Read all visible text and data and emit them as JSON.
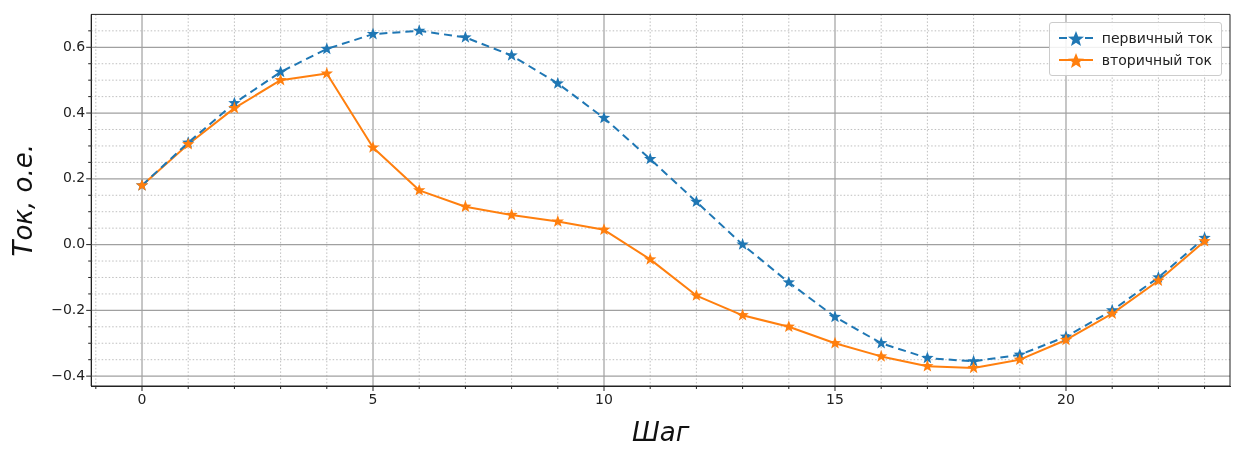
{
  "chart_data": {
    "type": "line",
    "xlabel": "Шаг",
    "ylabel": "Ток, о.е.",
    "x": [
      0,
      1,
      2,
      3,
      4,
      5,
      6,
      7,
      8,
      9,
      10,
      11,
      12,
      13,
      14,
      15,
      16,
      17,
      18,
      19,
      20,
      21,
      22,
      23
    ],
    "series": [
      {
        "name": "первичный ток",
        "color": "#1f77b4",
        "line_style": "dashed",
        "values": [
          0.18,
          0.31,
          0.43,
          0.525,
          0.595,
          0.64,
          0.65,
          0.63,
          0.575,
          0.49,
          0.385,
          0.26,
          0.13,
          0.0,
          -0.115,
          -0.22,
          -0.3,
          -0.345,
          -0.355,
          -0.335,
          -0.28,
          -0.2,
          -0.1,
          0.02
        ]
      },
      {
        "name": "вторичный ток",
        "color": "#ff7f0e",
        "line_style": "solid",
        "values": [
          0.18,
          0.305,
          0.415,
          0.5,
          0.52,
          0.295,
          0.165,
          0.115,
          0.09,
          0.07,
          0.045,
          -0.045,
          -0.155,
          -0.215,
          -0.25,
          -0.3,
          -0.34,
          -0.37,
          -0.375,
          -0.35,
          -0.29,
          -0.21,
          -0.11,
          0.01
        ]
      }
    ],
    "xlim": [
      -1.1,
      23.55
    ],
    "ylim": [
      -0.43,
      0.7
    ],
    "xticks": [
      {
        "value": -1,
        "label": null
      },
      0,
      {
        "value": 1,
        "label": null
      },
      {
        "value": 2,
        "label": null
      },
      {
        "value": 3,
        "label": null
      },
      {
        "value": 4,
        "label": null
      },
      5,
      {
        "value": 6,
        "label": null
      },
      {
        "value": 7,
        "label": null
      },
      {
        "value": 8,
        "label": null
      },
      {
        "value": 9,
        "label": null
      },
      10,
      {
        "value": 11,
        "label": null
      },
      {
        "value": 12,
        "label": null
      },
      {
        "value": 13,
        "label": null
      },
      {
        "value": 14,
        "label": null
      },
      15,
      {
        "value": 16,
        "label": null
      },
      {
        "value": 17,
        "label": null
      },
      {
        "value": 18,
        "label": null
      },
      {
        "value": 19,
        "label": null
      },
      20,
      {
        "value": 21,
        "label": null
      },
      {
        "value": 22,
        "label": null
      },
      {
        "value": 23,
        "label": null
      }
    ],
    "yticks": [
      {
        "value": -0.4,
        "label": "−0.4"
      },
      {
        "value": -0.35,
        "label": null
      },
      {
        "value": -0.3,
        "label": null
      },
      {
        "value": -0.25,
        "label": null
      },
      {
        "value": -0.2,
        "label": "−0.2"
      },
      {
        "value": -0.15,
        "label": null
      },
      {
        "value": -0.1,
        "label": null
      },
      {
        "value": -0.05,
        "label": null
      },
      {
        "value": 0,
        "label": "0.0"
      },
      {
        "value": 0.05,
        "label": null
      },
      {
        "value": 0.1,
        "label": null
      },
      {
        "value": 0.15,
        "label": null
      },
      0.2,
      {
        "value": 0.25,
        "label": null
      },
      {
        "value": 0.3,
        "label": null
      },
      {
        "value": 0.35,
        "label": null
      },
      0.4,
      {
        "value": 0.45,
        "label": null
      },
      {
        "value": 0.5,
        "label": null
      },
      {
        "value": 0.55,
        "label": null
      },
      0.6,
      {
        "value": 0.65,
        "label": null
      }
    ],
    "grid": true,
    "legend": "top right",
    "marker": "star"
  }
}
